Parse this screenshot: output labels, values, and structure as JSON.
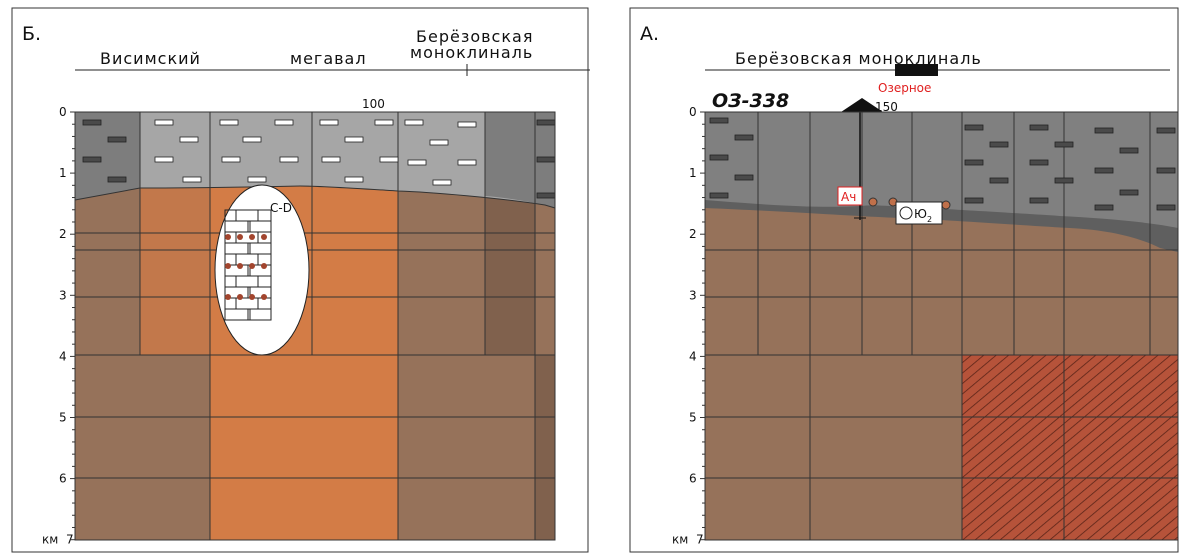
{
  "panel_b": {
    "letter": "Б.",
    "structure_left": "Висимский",
    "structure_mid": "мегавал",
    "structure_right_1": "Берёзовская",
    "structure_right_2": "моноклиналь",
    "distance": "100",
    "inset_label": "С-D"
  },
  "panel_a": {
    "letter": "А.",
    "structure": "Берёзовская моноклиналь",
    "field": "Озерное",
    "well": "ОЗ-338",
    "distance": "150",
    "marker_1": "Ач",
    "marker_2": "Ю",
    "marker_2_sub": "2"
  },
  "depth_axis": {
    "labels": [
      "0",
      "1",
      "2",
      "3",
      "4",
      "5",
      "6",
      "7"
    ],
    "unit": "км"
  }
}
